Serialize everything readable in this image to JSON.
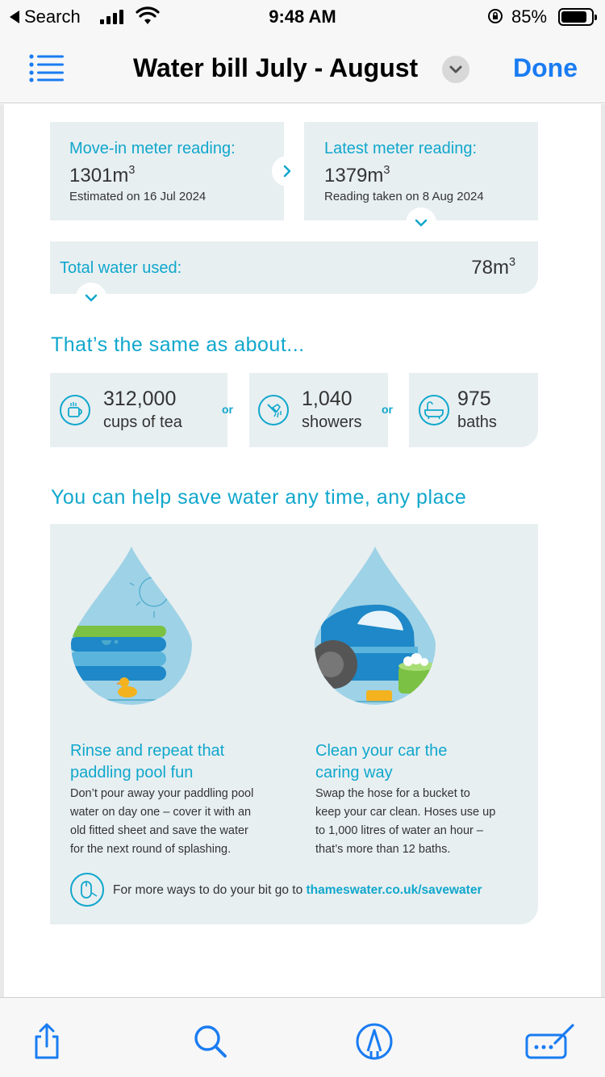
{
  "status_bar": {
    "back_label": "Search",
    "time": "9:48 AM",
    "battery_pct": "85%",
    "battery_level": 0.85
  },
  "nav": {
    "title": "Water bill July - August",
    "done_label": "Done",
    "accent": "#1a7cf2"
  },
  "meter": {
    "move_in": {
      "label": "Move-in meter reading:",
      "value": "1301m",
      "unit_sup": "3",
      "note": "Estimated on 16 Jul 2024"
    },
    "latest": {
      "label": "Latest meter reading:",
      "value": "1379m",
      "unit_sup": "3",
      "note": "Reading taken on 8 Aug 2024"
    },
    "total": {
      "label": "Total water used:",
      "value": "78m",
      "unit_sup": "3"
    }
  },
  "equivalents": {
    "heading": "That’s the same as about...",
    "or_label": "or",
    "items": [
      {
        "number": "312,000",
        "label": "cups of tea",
        "icon": "teacup-icon"
      },
      {
        "number": "1,040",
        "label": "showers",
        "icon": "shower-icon"
      },
      {
        "number": "975",
        "label": "baths",
        "icon": "bathtub-icon"
      }
    ]
  },
  "save_water": {
    "heading": "You can help save water any time, any place",
    "tips": [
      {
        "title_line1": "Rinse and repeat that",
        "title_line2": "paddling pool fun",
        "body_lines": [
          "Don’t pour away your paddling pool",
          "water on day one – cover it with an",
          "old fitted sheet and save the water",
          "for the next round of splashing."
        ]
      },
      {
        "title_line1": "Clean your car the",
        "title_line2": "caring way",
        "body_lines": [
          "Swap the hose for a bucket to",
          "keep your car clean. Hoses use up",
          "to 1,000 litres of water an hour –",
          "that’s more than 12 baths."
        ]
      }
    ],
    "more_text": "For more ways to do your bit go to ",
    "more_link": "thameswater.co.uk/savewater"
  },
  "colors": {
    "teal": "#10a7cc",
    "card_bg": "#e8eff1",
    "drop_light": "#9ed2e6",
    "green": "#7bc143"
  }
}
